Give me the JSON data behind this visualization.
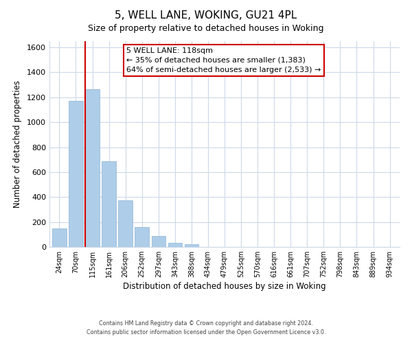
{
  "title": "5, WELL LANE, WOKING, GU21 4PL",
  "subtitle": "Size of property relative to detached houses in Woking",
  "xlabel": "Distribution of detached houses by size in Woking",
  "ylabel": "Number of detached properties",
  "bar_labels": [
    "24sqm",
    "70sqm",
    "115sqm",
    "161sqm",
    "206sqm",
    "252sqm",
    "297sqm",
    "343sqm",
    "388sqm",
    "434sqm",
    "479sqm",
    "525sqm",
    "570sqm",
    "616sqm",
    "661sqm",
    "707sqm",
    "752sqm",
    "798sqm",
    "843sqm",
    "889sqm",
    "934sqm"
  ],
  "bar_values": [
    148,
    1172,
    1265,
    688,
    375,
    160,
    90,
    35,
    20,
    0,
    0,
    0,
    0,
    0,
    0,
    0,
    0,
    0,
    0,
    0,
    0
  ],
  "bar_color": "#aecde8",
  "bar_edge_color": "#8ab4d4",
  "property_line_index": 2,
  "property_line_color": "#cc0000",
  "annotation_line1": "5 WELL LANE: 118sqm",
  "annotation_line2": "← 35% of detached houses are smaller (1,383)",
  "annotation_line3": "64% of semi-detached houses are larger (2,533) →",
  "annotation_box_color": "#ffffff",
  "annotation_box_edge": "#cc0000",
  "ylim": [
    0,
    1650
  ],
  "yticks": [
    0,
    200,
    400,
    600,
    800,
    1000,
    1200,
    1400,
    1600
  ],
  "footer1": "Contains HM Land Registry data © Crown copyright and database right 2024.",
  "footer2": "Contains public sector information licensed under the Open Government Licence v3.0.",
  "background_color": "#ffffff",
  "grid_color": "#ccd9e8"
}
